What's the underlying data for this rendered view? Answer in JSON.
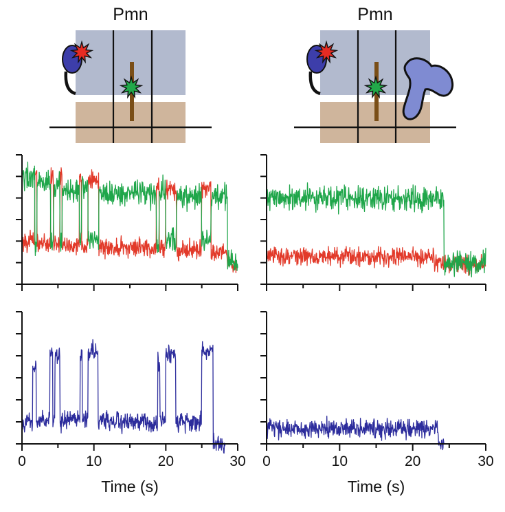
{
  "panels": [
    {
      "title": "Pmn",
      "cartoon": {
        "trap_bead": false
      },
      "fret": {
        "xlabel": "",
        "xlim": [
          0,
          30
        ],
        "ylim": [
          0,
          6
        ],
        "donor_color": "#1fa64a",
        "acceptor_color": "#e23a2a",
        "donor_segments": [
          [
            0,
            1.8,
            5.0
          ],
          [
            1.8,
            2.1,
            2.0
          ],
          [
            2.1,
            4.0,
            4.7
          ],
          [
            4.0,
            4.4,
            2.0
          ],
          [
            4.4,
            5.3,
            4.5
          ],
          [
            5.3,
            5.6,
            2.0
          ],
          [
            5.6,
            8.0,
            4.4
          ],
          [
            8.0,
            8.3,
            2.0
          ],
          [
            8.3,
            9.2,
            4.5
          ],
          [
            9.2,
            10.7,
            2.0
          ],
          [
            10.7,
            18.7,
            4.2
          ],
          [
            18.7,
            19.1,
            2.0
          ],
          [
            19.1,
            20.0,
            4.3
          ],
          [
            20.0,
            21.5,
            2.0
          ],
          [
            21.5,
            25.0,
            4.1
          ],
          [
            25.0,
            26.3,
            2.0
          ],
          [
            26.3,
            28.6,
            4.0
          ],
          [
            28.6,
            30.0,
            1.0
          ]
        ],
        "acceptor_segments": [
          [
            0,
            1.8,
            2.0
          ],
          [
            1.8,
            2.1,
            5.2
          ],
          [
            2.1,
            4.0,
            1.9
          ],
          [
            4.0,
            4.4,
            5.0
          ],
          [
            4.4,
            5.3,
            1.9
          ],
          [
            5.3,
            5.6,
            5.0
          ],
          [
            5.6,
            8.0,
            1.8
          ],
          [
            8.0,
            8.3,
            5.0
          ],
          [
            8.3,
            9.2,
            1.8
          ],
          [
            9.2,
            10.7,
            4.8
          ],
          [
            10.7,
            18.7,
            1.7
          ],
          [
            18.7,
            19.1,
            4.6
          ],
          [
            19.1,
            20.0,
            1.7
          ],
          [
            20.0,
            21.5,
            4.4
          ],
          [
            21.5,
            25.0,
            1.6
          ],
          [
            25.0,
            26.3,
            4.5
          ],
          [
            26.3,
            28.6,
            1.5
          ],
          [
            28.6,
            30.0,
            1.0
          ]
        ]
      },
      "eff": {
        "xlabel": "Time (s)",
        "xlim": [
          0,
          30
        ],
        "xticks": [
          "0",
          "10",
          "20",
          "30"
        ],
        "ylim": [
          0,
          6
        ],
        "color": "#2c2c9c",
        "segments": [
          [
            0,
            1.5,
            1.0
          ],
          [
            1.5,
            2.0,
            3.5
          ],
          [
            2.0,
            3.9,
            1.0
          ],
          [
            3.9,
            4.3,
            4.1
          ],
          [
            4.3,
            4.6,
            1.0
          ],
          [
            4.6,
            5.3,
            4.1
          ],
          [
            5.3,
            5.6,
            1.0
          ],
          [
            5.6,
            8.1,
            1.1
          ],
          [
            8.1,
            8.4,
            4.0
          ],
          [
            8.4,
            9.2,
            1.1
          ],
          [
            9.2,
            10.6,
            4.2
          ],
          [
            10.6,
            18.9,
            1.0
          ],
          [
            18.9,
            19.2,
            3.8
          ],
          [
            19.2,
            20.0,
            1.0
          ],
          [
            20.0,
            21.4,
            4.1
          ],
          [
            21.4,
            25.0,
            1.0
          ],
          [
            25.0,
            26.6,
            4.3
          ],
          [
            26.6,
            28.3,
            0.0
          ],
          [
            28.3,
            30.0,
            0.0
          ]
        ]
      }
    },
    {
      "title": "Pmn",
      "cartoon": {
        "trap_bead": true
      },
      "fret": {
        "xlabel": "",
        "xlim": [
          0,
          30
        ],
        "ylim": [
          0,
          6
        ],
        "donor_color": "#1fa64a",
        "acceptor_color": "#e23a2a",
        "donor_segments": [
          [
            0,
            24.3,
            4.0
          ],
          [
            24.3,
            30.0,
            1.0
          ]
        ],
        "acceptor_segments": [
          [
            0,
            23.0,
            1.3
          ],
          [
            23.0,
            24.5,
            1.0
          ],
          [
            24.5,
            30.0,
            0.9
          ]
        ]
      },
      "eff": {
        "xlabel": "Time (s)",
        "xlim": [
          0,
          30
        ],
        "xticks": [
          "0",
          "10",
          "20",
          "30"
        ],
        "ylim": [
          0,
          6
        ],
        "color": "#2c2c9c",
        "segments": [
          [
            0,
            23.5,
            0.7
          ],
          [
            23.5,
            24.3,
            0.0
          ],
          [
            24.3,
            30.0,
            0.0
          ]
        ]
      }
    }
  ]
}
